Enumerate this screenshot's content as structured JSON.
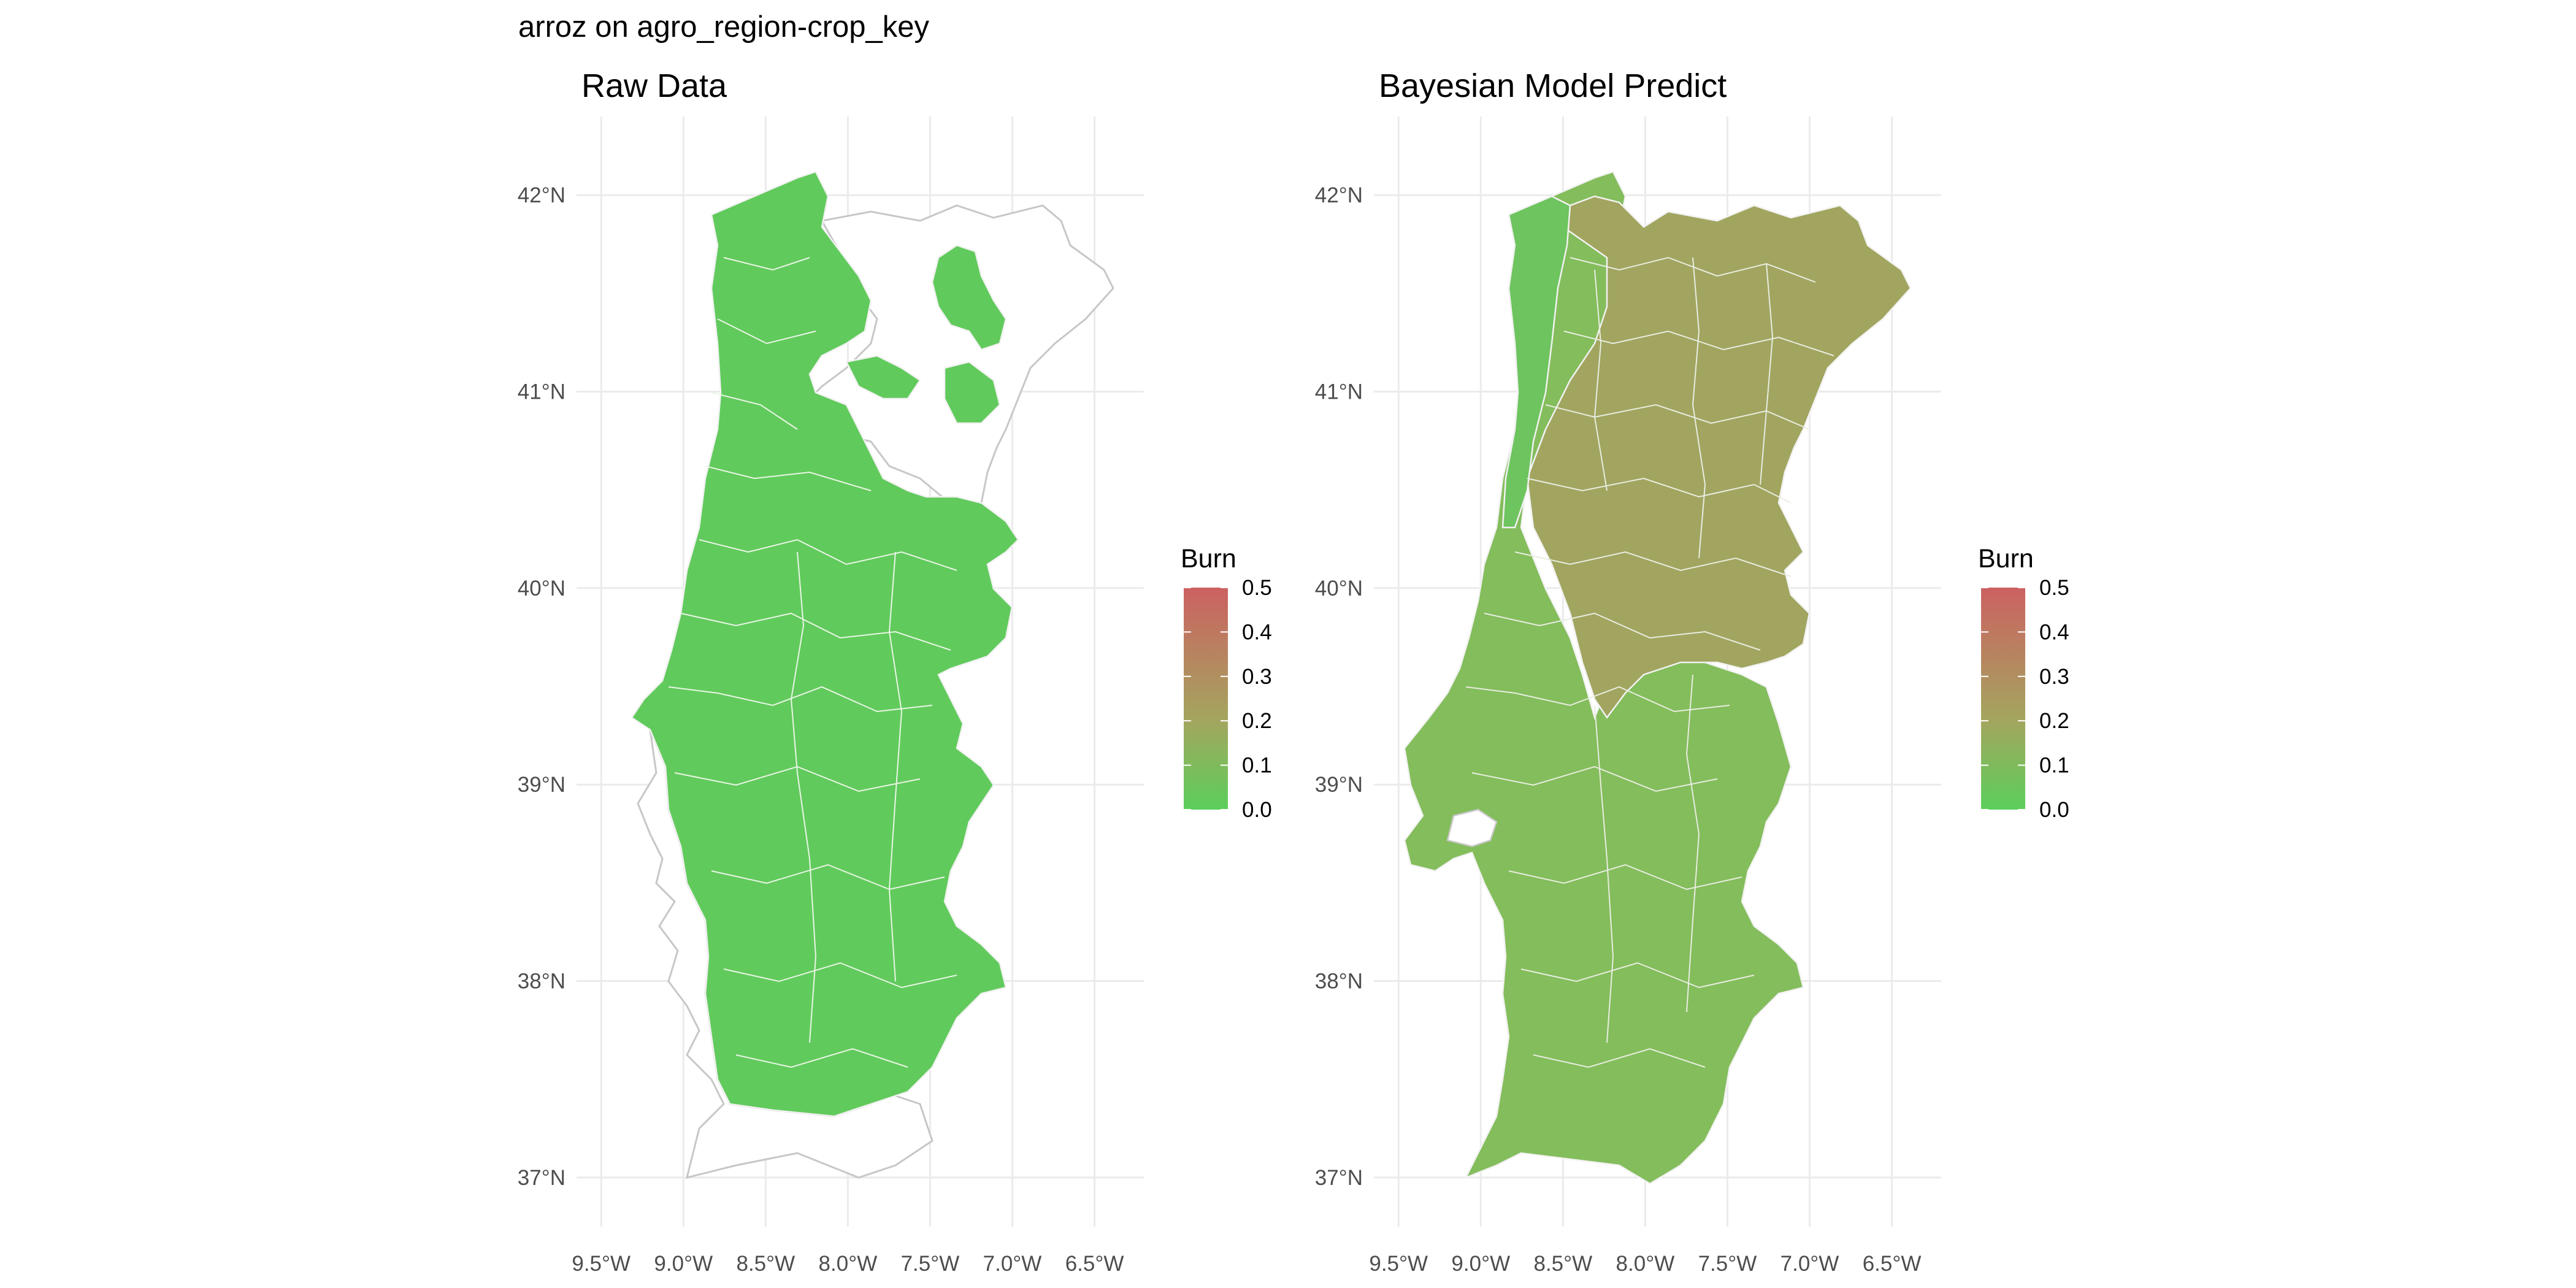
{
  "figure": {
    "title": "arroz on agro_region-crop_key"
  },
  "panels": [
    {
      "id": "raw",
      "subtitle": "Raw Data",
      "legend": {
        "title": "Burn",
        "ticks": [
          "0.5",
          "0.4",
          "0.3",
          "0.2",
          "0.1",
          "0.0"
        ]
      }
    },
    {
      "id": "bayes",
      "subtitle": "Bayesian Model Predict",
      "legend": {
        "title": "Burn",
        "ticks": [
          "0.5",
          "0.4",
          "0.3",
          "0.2",
          "0.1",
          "0.0"
        ]
      }
    }
  ],
  "axes": {
    "x_ticks": [
      "9.5°W",
      "9.0°W",
      "8.5°W",
      "8.0°W",
      "7.5°W",
      "7.0°W",
      "6.5°W"
    ],
    "y_ticks": [
      "42°N",
      "41°N",
      "40°N",
      "39°N",
      "38°N",
      "37°N"
    ],
    "x_values": [
      -9.5,
      -9.0,
      -8.5,
      -8.0,
      -7.5,
      -7.0,
      -6.5
    ],
    "y_values": [
      42,
      41,
      40,
      39,
      38,
      37
    ],
    "xlim": [
      -9.65,
      -6.2
    ],
    "ylim": [
      36.75,
      42.4
    ],
    "grid": true
  },
  "color_scale": {
    "name": "Burn",
    "min": 0.0,
    "max": 0.5,
    "low_color": "#5bcf5b",
    "mid_color": "#a3a65e",
    "high_color": "#cc6161",
    "missing_color": "#ffffff"
  }
}
